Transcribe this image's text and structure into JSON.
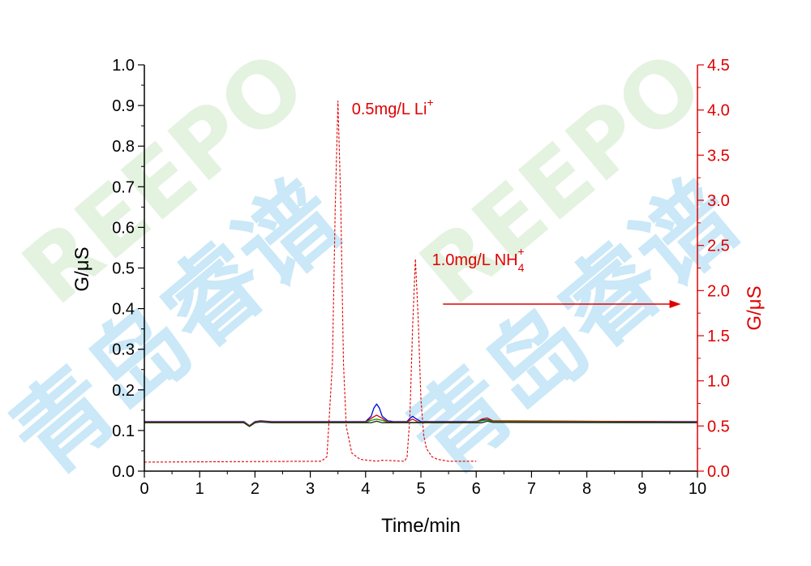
{
  "watermark": {
    "latin": "REEPO",
    "cjk": "青岛睿谱"
  },
  "chart_data": {
    "type": "line",
    "xlabel": "Time/min",
    "ylabel_left": "G/μS",
    "ylabel_right": "G/μS",
    "xlim": [
      0,
      10
    ],
    "ylim_left": [
      0.0,
      1.0
    ],
    "ylim_right": [
      0.0,
      4.5
    ],
    "x_ticks": [
      "0",
      "1",
      "2",
      "3",
      "4",
      "5",
      "6",
      "7",
      "8",
      "9",
      "10"
    ],
    "y_left_ticks": [
      "0.0",
      "0.1",
      "0.2",
      "0.3",
      "0.4",
      "0.5",
      "0.6",
      "0.7",
      "0.8",
      "0.9",
      "1.0"
    ],
    "y_right_ticks": [
      "0.0",
      "0.5",
      "1.0",
      "1.5",
      "2.0",
      "2.5",
      "3.0",
      "3.5",
      "4.0",
      "4.5"
    ],
    "colors": {
      "left_axis": "#000000",
      "right_axis": "#e00000",
      "blue": "#0000dd",
      "red": "#e00000",
      "green": "#00a000",
      "dark": "#202020"
    },
    "annotations": [
      {
        "text": "0.5mg/L Li",
        "sup": "+",
        "x": 3.75,
        "y_right": 3.95
      },
      {
        "text": "1.0mg/L NH",
        "sub": "4",
        "sup": "+",
        "x": 5.2,
        "y_right": 2.28
      }
    ],
    "arrow": {
      "from_x": 5.4,
      "to_x": 9.7,
      "y_right": 1.85
    },
    "series": [
      {
        "axis": "right",
        "style": "dashed",
        "color": "#e00000",
        "x": [
          0,
          3.2,
          3.3,
          3.4,
          3.45,
          3.5,
          3.55,
          3.6,
          3.65,
          3.75,
          3.9,
          4.2,
          4.3,
          4.7,
          4.75,
          4.8,
          4.85,
          4.9,
          4.95,
          5.0,
          5.05,
          5.1,
          5.2,
          5.3,
          5.5,
          6.0
        ],
        "y": [
          0.1,
          0.11,
          0.16,
          1.2,
          2.9,
          4.1,
          3.0,
          1.2,
          0.5,
          0.2,
          0.13,
          0.11,
          0.12,
          0.11,
          0.15,
          0.6,
          1.6,
          2.35,
          1.7,
          0.8,
          0.4,
          0.25,
          0.16,
          0.13,
          0.11,
          0.11
        ]
      },
      {
        "axis": "left",
        "style": "solid",
        "color": "#0000dd",
        "x": [
          0,
          1.8,
          1.9,
          2.0,
          2.1,
          2.3,
          4.0,
          4.1,
          4.15,
          4.2,
          4.25,
          4.3,
          4.4,
          4.5,
          4.75,
          4.8,
          4.85,
          4.9,
          5.0,
          6.0,
          6.1,
          6.2,
          6.3,
          10
        ],
        "y": [
          0.122,
          0.122,
          0.112,
          0.122,
          0.124,
          0.122,
          0.122,
          0.135,
          0.155,
          0.165,
          0.155,
          0.135,
          0.124,
          0.122,
          0.122,
          0.13,
          0.135,
          0.13,
          0.122,
          0.122,
          0.126,
          0.127,
          0.123,
          0.122
        ]
      },
      {
        "axis": "left",
        "style": "solid",
        "color": "#e00000",
        "x": [
          0,
          1.8,
          1.9,
          2.0,
          2.1,
          2.3,
          4.0,
          4.1,
          4.2,
          4.3,
          4.4,
          4.75,
          4.85,
          4.95,
          6.0,
          6.1,
          6.2,
          6.3,
          10
        ],
        "y": [
          0.121,
          0.121,
          0.112,
          0.121,
          0.123,
          0.121,
          0.121,
          0.13,
          0.138,
          0.13,
          0.121,
          0.121,
          0.128,
          0.121,
          0.121,
          0.128,
          0.131,
          0.124,
          0.121
        ]
      },
      {
        "axis": "left",
        "style": "solid",
        "color": "#00a000",
        "x": [
          0,
          1.8,
          1.9,
          2.0,
          2.1,
          2.3,
          4.0,
          4.1,
          4.2,
          4.3,
          4.4,
          6.0,
          6.1,
          6.2,
          6.3,
          10
        ],
        "y": [
          0.12,
          0.12,
          0.111,
          0.12,
          0.122,
          0.12,
          0.12,
          0.125,
          0.128,
          0.125,
          0.12,
          0.12,
          0.124,
          0.126,
          0.122,
          0.12
        ]
      },
      {
        "axis": "left",
        "style": "solid",
        "color": "#202020",
        "x": [
          0,
          1.8,
          1.9,
          2.0,
          2.1,
          2.3,
          4.1,
          4.2,
          4.3,
          6.1,
          6.2,
          6.3,
          10
        ],
        "y": [
          0.119,
          0.119,
          0.11,
          0.119,
          0.121,
          0.119,
          0.119,
          0.123,
          0.119,
          0.119,
          0.123,
          0.12,
          0.119
        ]
      }
    ]
  }
}
